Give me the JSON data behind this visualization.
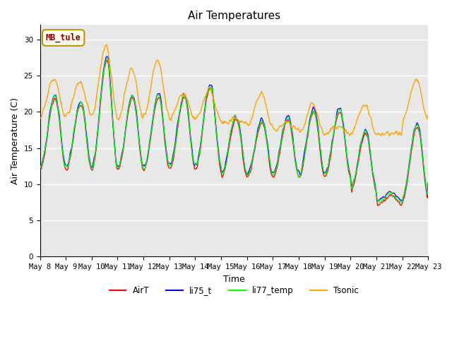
{
  "title": "Air Temperatures",
  "xlabel": "Time",
  "ylabel": "Air Temperature (C)",
  "ylim": [
    0,
    32
  ],
  "yticks": [
    0,
    5,
    10,
    15,
    20,
    25,
    30
  ],
  "site_label": "MB_tule",
  "legend_entries": [
    "AirT",
    "li75_t",
    "li77_temp",
    "Tsonic"
  ],
  "line_colors": [
    "red",
    "blue",
    "lime",
    "orange"
  ],
  "background_color": "#e8e8e8",
  "plot_bg_color": "#e8e8e8",
  "x_tick_labels": [
    "May 8",
    "May 9",
    "May 10",
    "May 11",
    "May 12",
    "May 13",
    "May 14",
    "May 15",
    "May 16",
    "May 17",
    "May 18",
    "May 19",
    "May 20",
    "May 21",
    "May 22",
    "May 23"
  ],
  "n_points": 960,
  "title_fontsize": 11,
  "tick_fontsize": 7.5,
  "label_fontsize": 9
}
